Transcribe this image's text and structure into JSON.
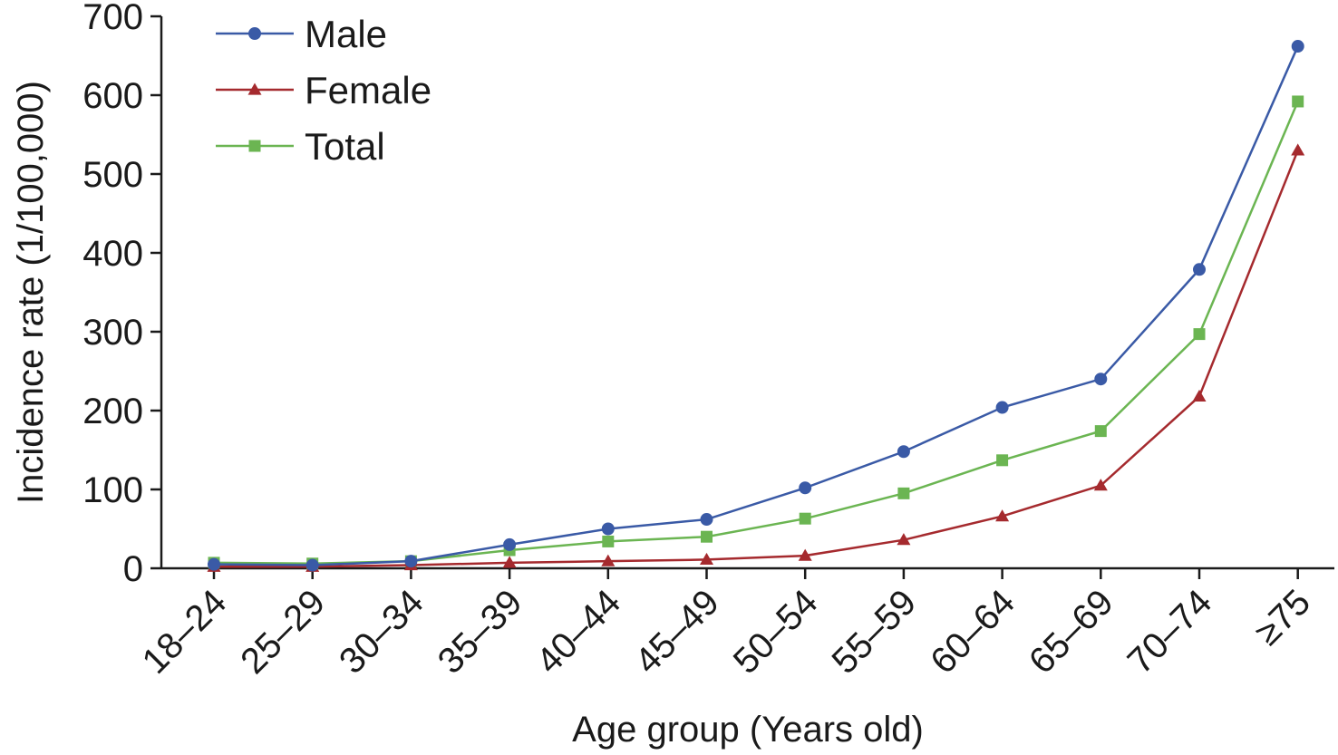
{
  "chart_data": {
    "type": "line",
    "xlabel": "Age group (Years old)",
    "ylabel": "Incidence rate (1/100,000)",
    "ylim": [
      0,
      700
    ],
    "yticks": [
      "0",
      "100",
      "200",
      "300",
      "400",
      "500",
      "600",
      "700"
    ],
    "categories": [
      "18–24",
      "25–29",
      "30–34",
      "35–39",
      "40–44",
      "45–49",
      "50–54",
      "55–59",
      "60–64",
      "65–69",
      "70–74",
      "≥75"
    ],
    "grid": false,
    "legend_position": "top-left",
    "series": [
      {
        "name": "Male",
        "color": "#3a5aa6",
        "marker": "circle",
        "values": [
          5,
          4,
          9,
          30,
          50,
          62,
          102,
          148,
          204,
          240,
          379,
          662
        ]
      },
      {
        "name": "Female",
        "color": "#a52a2e",
        "marker": "triangle",
        "values": [
          2,
          2,
          4,
          7,
          9,
          11,
          16,
          36,
          66,
          105,
          218,
          530
        ]
      },
      {
        "name": "Total",
        "color": "#6bb552",
        "marker": "square",
        "values": [
          7,
          6,
          9,
          23,
          34,
          40,
          63,
          95,
          137,
          174,
          297,
          592
        ]
      }
    ]
  }
}
